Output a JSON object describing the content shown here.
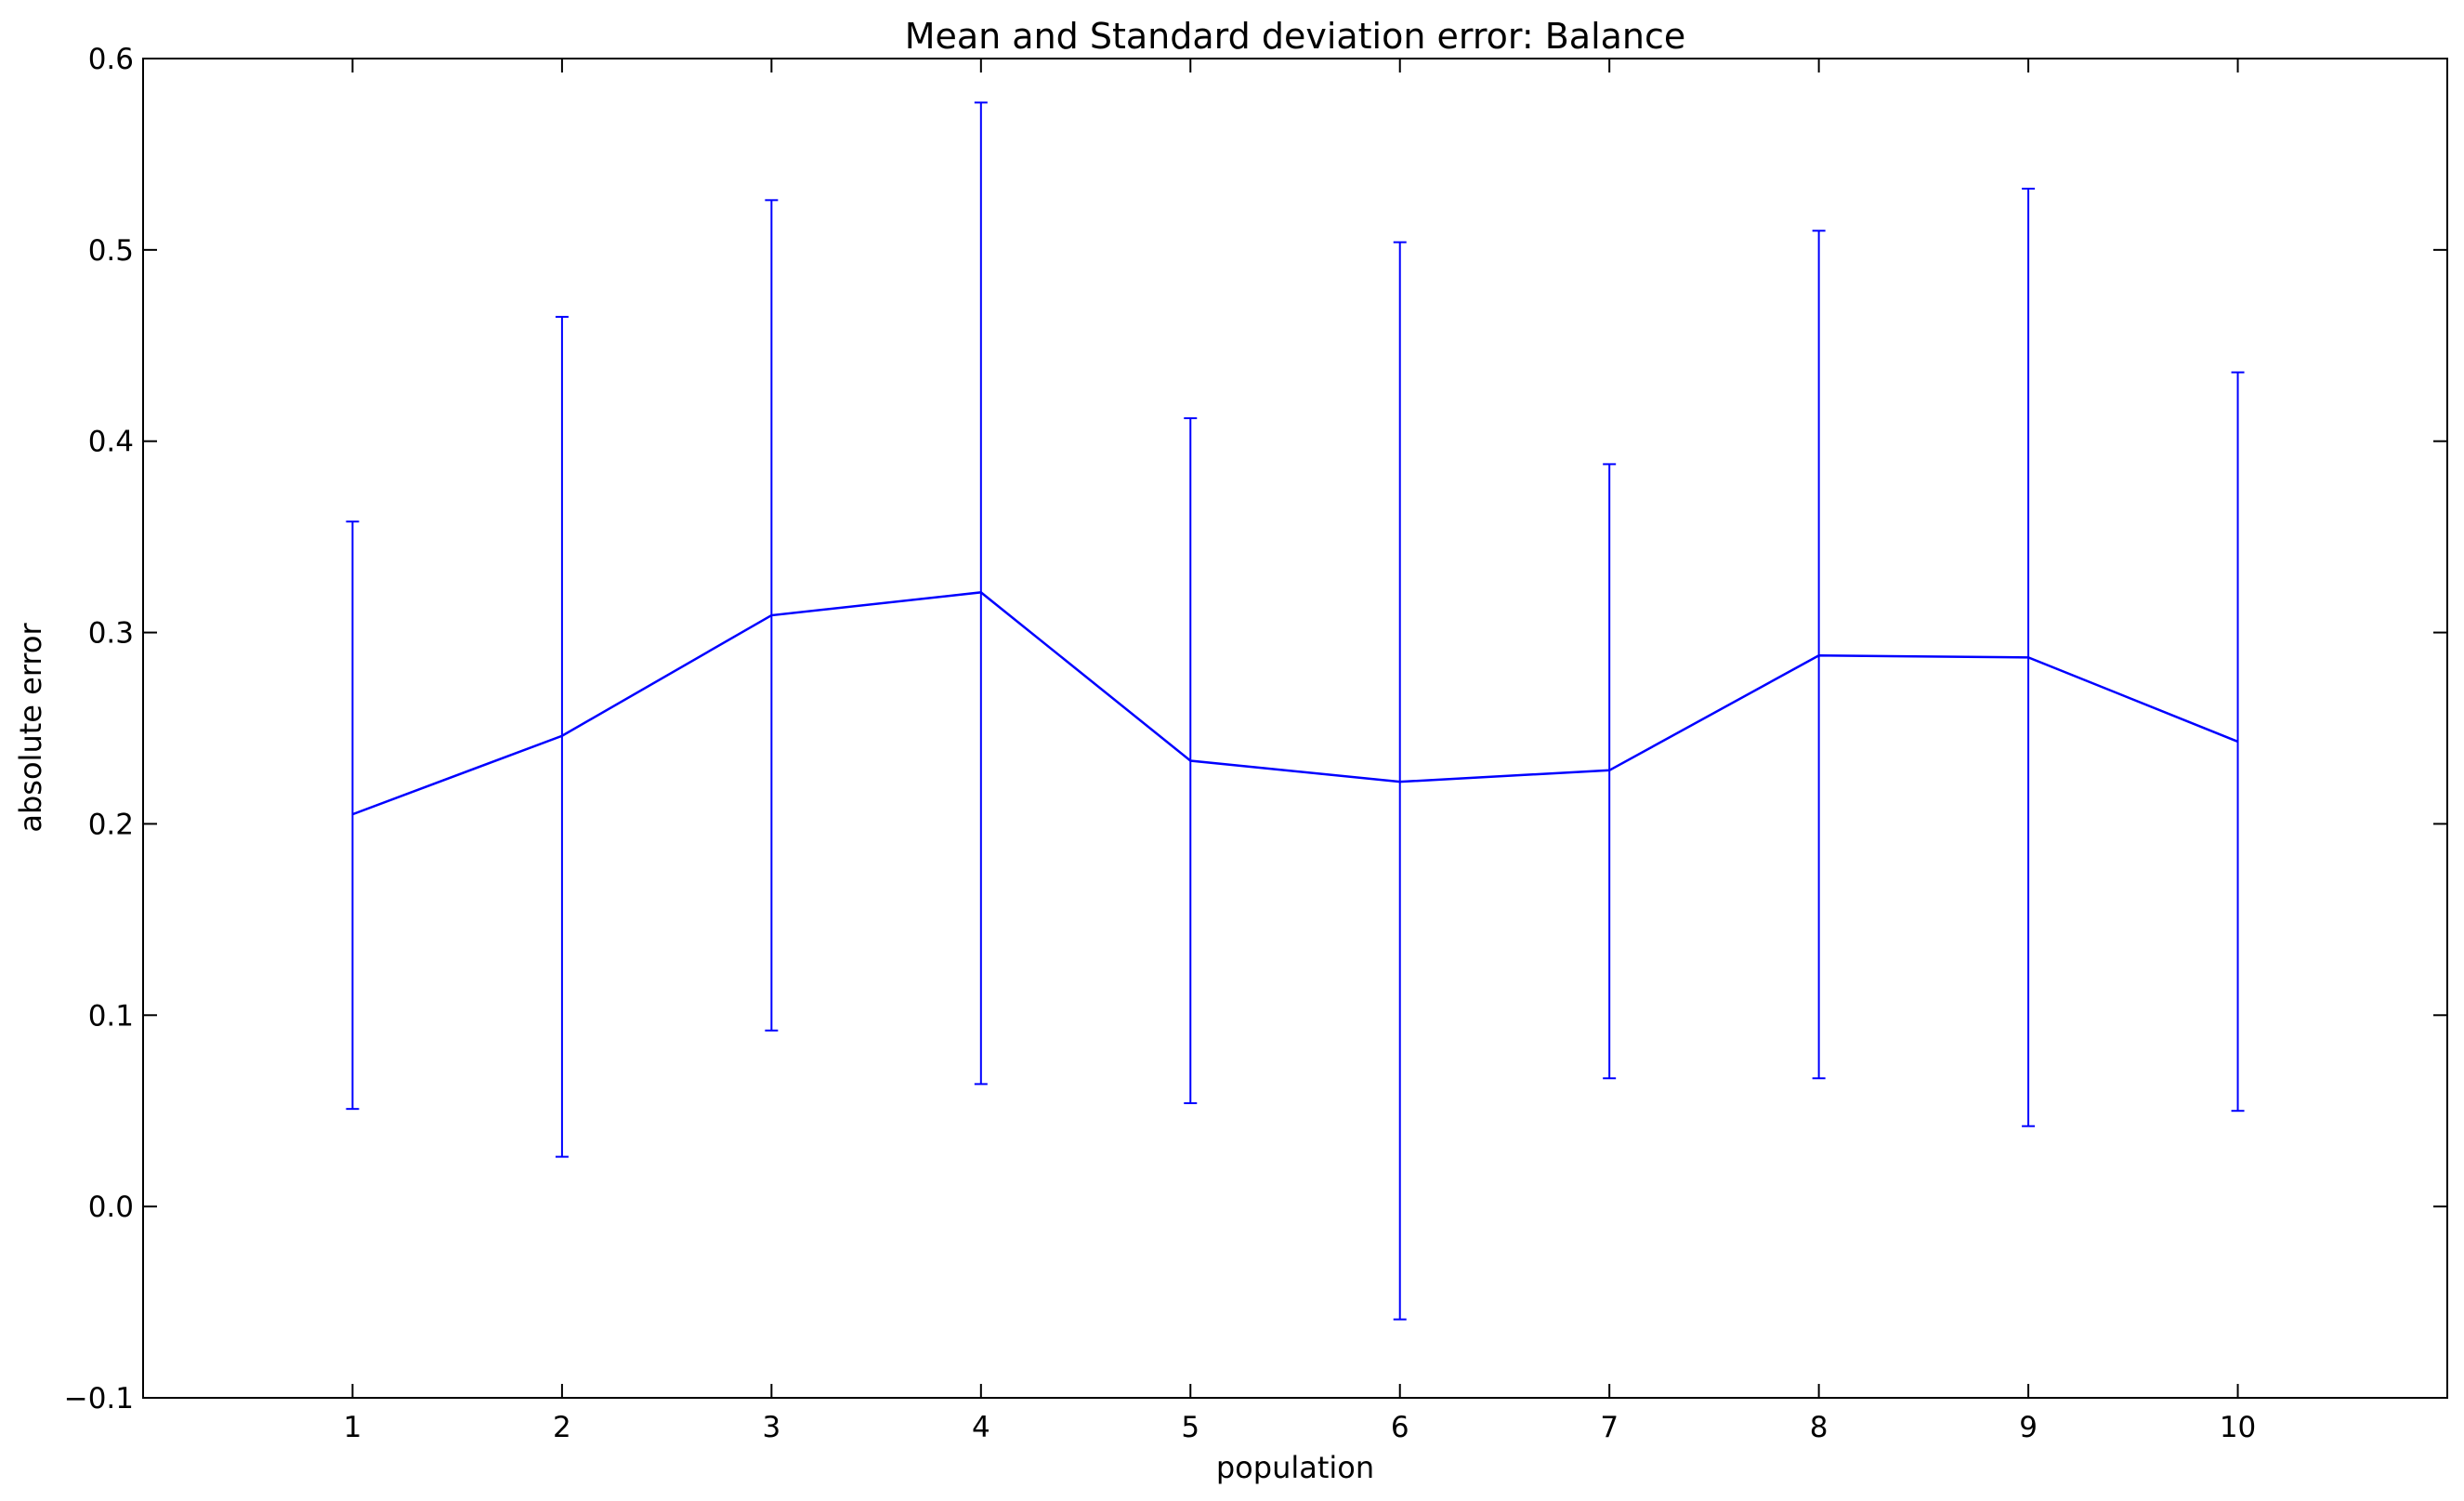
{
  "chart_data": {
    "type": "line",
    "title": "Mean and Standard deviation error: Balance",
    "xlabel": "population",
    "ylabel": "absolute error",
    "xlim": [
      0,
      11
    ],
    "ylim": [
      -0.1,
      0.6
    ],
    "x_ticks": [
      1,
      2,
      3,
      4,
      5,
      6,
      7,
      8,
      9,
      10
    ],
    "x_tick_labels": [
      "1",
      "2",
      "3",
      "4",
      "5",
      "6",
      "7",
      "8",
      "9",
      "10"
    ],
    "y_ticks": [
      -0.1,
      0.0,
      0.1,
      0.2,
      0.3,
      0.4,
      0.5,
      0.6
    ],
    "y_tick_labels": [
      "−0.1",
      "0.0",
      "0.1",
      "0.2",
      "0.3",
      "0.4",
      "0.5",
      "0.6"
    ],
    "grid": false,
    "legend": "none",
    "series": [
      {
        "x": [
          1,
          2,
          3,
          4,
          5,
          6,
          7,
          8,
          9,
          10
        ],
        "mean": [
          0.205,
          0.246,
          0.309,
          0.321,
          0.233,
          0.222,
          0.228,
          0.288,
          0.287,
          0.243
        ],
        "err_low": [
          0.051,
          0.026,
          0.092,
          0.064,
          0.054,
          -0.059,
          0.067,
          0.067,
          0.042,
          0.05
        ],
        "err_high": [
          0.358,
          0.465,
          0.526,
          0.577,
          0.412,
          0.504,
          0.388,
          0.51,
          0.532,
          0.436
        ],
        "color": "#0000ff"
      }
    ]
  }
}
